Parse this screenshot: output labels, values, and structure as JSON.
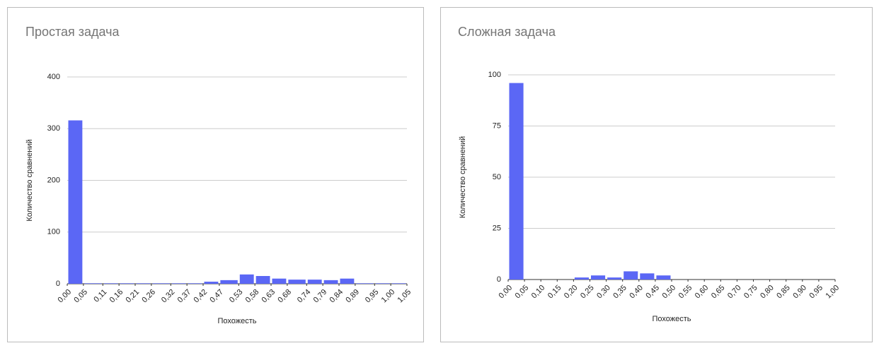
{
  "chart_data": [
    {
      "type": "histogram",
      "title": "Простая задача",
      "x_label": "Похожесть",
      "y_label": "Количество сравнений",
      "color": "#5b67f5",
      "grid": true,
      "bins": [
        0.0,
        0.05,
        0.11,
        0.16,
        0.21,
        0.26,
        0.32,
        0.37,
        0.42,
        0.47,
        0.53,
        0.58,
        0.63,
        0.68,
        0.74,
        0.79,
        0.84,
        0.89,
        0.95,
        1.0,
        1.05
      ],
      "values": [
        316,
        1,
        1,
        1,
        1,
        1,
        1,
        1,
        4,
        7,
        18,
        15,
        10,
        8,
        8,
        7,
        10,
        1,
        1,
        1
      ],
      "xlim": [
        0,
        1.05
      ],
      "xticks": [
        {
          "value": 0.0,
          "label": "0,00"
        },
        {
          "value": 0.05,
          "label": "0,05"
        },
        {
          "value": 0.11,
          "label": "0,11"
        },
        {
          "value": 0.16,
          "label": "0,16"
        },
        {
          "value": 0.21,
          "label": "0,21"
        },
        {
          "value": 0.26,
          "label": "0,26"
        },
        {
          "value": 0.32,
          "label": "0,32"
        },
        {
          "value": 0.37,
          "label": "0,37"
        },
        {
          "value": 0.42,
          "label": "0,42"
        },
        {
          "value": 0.47,
          "label": "0,47"
        },
        {
          "value": 0.53,
          "label": "0,53"
        },
        {
          "value": 0.58,
          "label": "0,58"
        },
        {
          "value": 0.63,
          "label": "0,63"
        },
        {
          "value": 0.68,
          "label": "0,68"
        },
        {
          "value": 0.74,
          "label": "0,74"
        },
        {
          "value": 0.79,
          "label": "0,79"
        },
        {
          "value": 0.84,
          "label": "0,84"
        },
        {
          "value": 0.89,
          "label": "0,89"
        },
        {
          "value": 0.95,
          "label": "0,95"
        },
        {
          "value": 1.0,
          "label": "1,00"
        },
        {
          "value": 1.05,
          "label": "1,05"
        }
      ],
      "ylim": [
        0,
        400
      ],
      "yticks": [
        0,
        100,
        200,
        300,
        400
      ]
    },
    {
      "type": "histogram",
      "title": "Сложная задача",
      "x_label": "Похожесть",
      "y_label": "Количество сравнений",
      "color": "#5b67f5",
      "grid": true,
      "bins": [
        0.0,
        0.05,
        0.1,
        0.15,
        0.2,
        0.25,
        0.3,
        0.35,
        0.4,
        0.45,
        0.5,
        0.55,
        0.6,
        0.65,
        0.7,
        0.75,
        0.8,
        0.85,
        0.9,
        0.95,
        1.0
      ],
      "values": [
        96,
        0,
        0,
        0,
        1,
        2,
        1,
        4,
        3,
        2,
        0,
        0,
        0,
        0,
        0,
        0,
        0,
        0,
        0,
        0
      ],
      "xlim": [
        0,
        1.0
      ],
      "xticks": [
        {
          "value": 0.0,
          "label": "0,00"
        },
        {
          "value": 0.05,
          "label": "0,05"
        },
        {
          "value": 0.1,
          "label": "0,10"
        },
        {
          "value": 0.15,
          "label": "0,15"
        },
        {
          "value": 0.2,
          "label": "0,20"
        },
        {
          "value": 0.25,
          "label": "0,25"
        },
        {
          "value": 0.3,
          "label": "0,30"
        },
        {
          "value": 0.35,
          "label": "0,35"
        },
        {
          "value": 0.4,
          "label": "0,40"
        },
        {
          "value": 0.45,
          "label": "0,45"
        },
        {
          "value": 0.5,
          "label": "0,50"
        },
        {
          "value": 0.55,
          "label": "0,55"
        },
        {
          "value": 0.6,
          "label": "0,60"
        },
        {
          "value": 0.65,
          "label": "0,65"
        },
        {
          "value": 0.7,
          "label": "0,70"
        },
        {
          "value": 0.75,
          "label": "0,75"
        },
        {
          "value": 0.8,
          "label": "0,80"
        },
        {
          "value": 0.85,
          "label": "0,85"
        },
        {
          "value": 0.9,
          "label": "0,90"
        },
        {
          "value": 0.95,
          "label": "0,95"
        },
        {
          "value": 1.0,
          "label": "1,00"
        }
      ],
      "ylim": [
        0,
        100
      ],
      "yticks": [
        0,
        25,
        50,
        75,
        100
      ]
    }
  ]
}
